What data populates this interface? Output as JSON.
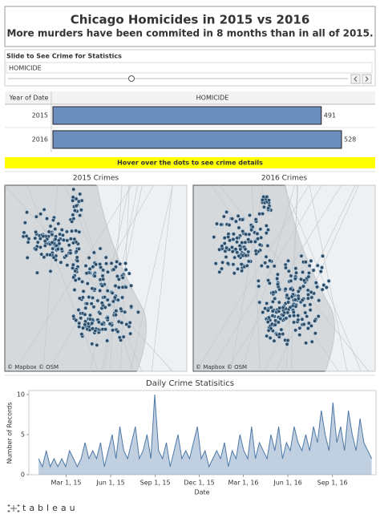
{
  "header": {
    "title": "Chicago Homicides in 2015 vs 2016",
    "subtitle": "More murders have been commited in 8 months than in all of 2015."
  },
  "filter": {
    "label": "Slide to See  Crime for Statistics",
    "value": "HOMICIDE"
  },
  "banner": "Hover over the dots to see crime details",
  "maps": [
    {
      "title": "2015 Crimes",
      "attribution": "© Mapbox © OSM"
    },
    {
      "title": "2016 Crimes",
      "attribution": "© Mapbox © OSM"
    }
  ],
  "footer": {
    "logo": "tableau"
  },
  "chart_data": [
    {
      "type": "bar",
      "orientation": "horizontal",
      "category_header": "Year of Date",
      "value_header": "HOMICIDE",
      "categories": [
        "2015",
        "2016"
      ],
      "values": [
        491,
        528
      ],
      "color": "#6c8ebf",
      "xlim": [
        0,
        550
      ]
    },
    {
      "type": "line",
      "title": "Daily Crime Statisitics",
      "x_label": "Date",
      "y_label": "Number of Records",
      "color": "#4e79a7",
      "x": [
        "2015-01-03",
        "2015-01-11",
        "2015-01-19",
        "2015-01-27",
        "2015-02-04",
        "2015-02-12",
        "2015-02-20",
        "2015-02-28",
        "2015-03-08",
        "2015-03-16",
        "2015-03-24",
        "2015-04-01",
        "2015-04-09",
        "2015-04-17",
        "2015-04-25",
        "2015-05-03",
        "2015-05-11",
        "2015-05-19",
        "2015-05-27",
        "2015-06-04",
        "2015-06-12",
        "2015-06-20",
        "2015-06-28",
        "2015-07-06",
        "2015-07-14",
        "2015-07-22",
        "2015-07-30",
        "2015-08-07",
        "2015-08-15",
        "2015-08-23",
        "2015-08-31",
        "2015-09-08",
        "2015-09-16",
        "2015-09-24",
        "2015-10-02",
        "2015-10-10",
        "2015-10-18",
        "2015-10-26",
        "2015-11-03",
        "2015-11-11",
        "2015-11-19",
        "2015-11-27",
        "2015-12-05",
        "2015-12-13",
        "2015-12-21",
        "2015-12-29",
        "2016-01-06",
        "2016-01-14",
        "2016-01-22",
        "2016-01-30",
        "2016-02-07",
        "2016-02-15",
        "2016-02-23",
        "2016-03-02",
        "2016-03-10",
        "2016-03-18",
        "2016-03-26",
        "2016-04-03",
        "2016-04-11",
        "2016-04-19",
        "2016-04-27",
        "2016-05-05",
        "2016-05-13",
        "2016-05-21",
        "2016-05-29",
        "2016-06-06",
        "2016-06-14",
        "2016-06-22",
        "2016-06-30",
        "2016-07-08",
        "2016-07-16",
        "2016-07-24",
        "2016-08-01",
        "2016-08-09",
        "2016-08-17",
        "2016-08-25",
        "2016-09-02",
        "2016-09-10",
        "2016-09-18",
        "2016-09-26",
        "2016-10-04",
        "2016-10-12",
        "2016-10-20",
        "2016-10-28",
        "2016-11-05",
        "2016-11-13",
        "2016-11-21"
      ],
      "values": [
        2,
        1,
        3,
        1,
        2,
        1,
        2,
        1,
        3,
        2,
        1,
        2,
        4,
        2,
        3,
        2,
        4,
        1,
        3,
        5,
        2,
        6,
        3,
        2,
        4,
        6,
        2,
        3,
        5,
        2,
        10,
        3,
        2,
        4,
        1,
        3,
        5,
        2,
        3,
        2,
        4,
        6,
        2,
        3,
        1,
        2,
        3,
        2,
        4,
        1,
        3,
        2,
        5,
        3,
        2,
        6,
        2,
        4,
        3,
        2,
        5,
        3,
        6,
        2,
        4,
        3,
        6,
        4,
        3,
        5,
        3,
        6,
        4,
        8,
        5,
        3,
        9,
        4,
        6,
        3,
        8,
        5,
        3,
        7,
        4,
        3,
        2
      ],
      "xlim": [
        "2014-12-14",
        "2016-11-30"
      ],
      "xticks": [
        {
          "value": "2015-03-01",
          "label": "Mar 1, 15"
        },
        {
          "value": "2015-06-01",
          "label": "Jun 1, 15"
        },
        {
          "value": "2015-09-01",
          "label": "Sep 1, 15"
        },
        {
          "value": "2015-12-01",
          "label": "Dec 1, 15"
        },
        {
          "value": "2016-03-01",
          "label": "Mar 1, 16"
        },
        {
          "value": "2016-06-01",
          "label": "Jun 1, 16"
        },
        {
          "value": "2016-09-01",
          "label": "Sep 1, 16"
        }
      ],
      "ylim": [
        0,
        10.5
      ],
      "yticks": [
        0,
        5,
        10
      ]
    }
  ]
}
